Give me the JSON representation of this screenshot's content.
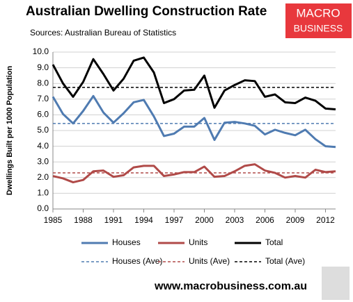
{
  "chart_data": {
    "type": "line",
    "title": "Australian Dwelling Construction Rate",
    "subtitle": "Sources: Australian Bureau of Statistics",
    "y_label": "Dwellings Built per 1000 Population",
    "x": [
      1985,
      1986,
      1987,
      1988,
      1989,
      1990,
      1991,
      1992,
      1993,
      1994,
      1995,
      1996,
      1997,
      1998,
      1999,
      2000,
      2001,
      2002,
      2003,
      2004,
      2005,
      2006,
      2007,
      2008,
      2009,
      2010,
      2011,
      2012,
      2013
    ],
    "xlim": [
      1985,
      2013
    ],
    "xticks": [
      1985,
      1988,
      1991,
      1994,
      1997,
      2000,
      2003,
      2006,
      2009,
      2012
    ],
    "ylim": [
      0,
      10
    ],
    "yticks": [
      {
        "value": 0,
        "label": "0.0"
      },
      {
        "value": 1,
        "label": "1.0"
      },
      {
        "value": 2,
        "label": "2.0"
      },
      {
        "value": 3,
        "label": "3.0"
      },
      {
        "value": 4,
        "label": "4.0"
      },
      {
        "value": 5,
        "label": "5.0"
      },
      {
        "value": 6,
        "label": "6.0"
      },
      {
        "value": 7,
        "label": "7.0"
      },
      {
        "value": 8,
        "label": "8.0"
      },
      {
        "value": 9,
        "label": "9.0"
      },
      {
        "value": 10,
        "label": "10.0"
      }
    ],
    "grid": true,
    "series": [
      {
        "name": "Houses",
        "color": "#4f7bb1",
        "values": [
          7.15,
          6.05,
          5.45,
          6.25,
          7.2,
          6.15,
          5.5,
          6.1,
          6.8,
          6.95,
          5.9,
          4.65,
          4.8,
          5.25,
          5.25,
          5.8,
          4.4,
          5.5,
          5.55,
          5.45,
          5.3,
          4.75,
          5.05,
          4.85,
          4.7,
          5.05,
          4.45,
          4.0,
          3.95
        ]
      },
      {
        "name": "Units",
        "color": "#b04a48",
        "values": [
          2.1,
          1.95,
          1.7,
          1.85,
          2.4,
          2.45,
          2.05,
          2.15,
          2.65,
          2.75,
          2.75,
          2.1,
          2.2,
          2.35,
          2.35,
          2.7,
          2.05,
          2.1,
          2.4,
          2.75,
          2.85,
          2.45,
          2.3,
          2.0,
          2.1,
          2.0,
          2.5,
          2.35,
          2.4
        ]
      },
      {
        "name": "Total",
        "color": "#000000",
        "values": [
          9.2,
          8.0,
          7.15,
          8.1,
          9.55,
          8.6,
          7.55,
          8.3,
          9.45,
          9.65,
          8.7,
          6.75,
          7.0,
          7.55,
          7.6,
          8.5,
          6.45,
          7.55,
          7.9,
          8.2,
          8.15,
          7.15,
          7.3,
          6.8,
          6.75,
          7.1,
          6.9,
          6.4,
          6.35
        ]
      }
    ],
    "reference_lines": [
      {
        "name": "Houses (Ave)",
        "color": "#4f7bb1",
        "value": 5.45
      },
      {
        "name": "Units (Ave)",
        "color": "#b04a48",
        "value": 2.3
      },
      {
        "name": "Total (Ave)",
        "color": "#000000",
        "value": 7.75
      }
    ]
  },
  "logo": {
    "line1": "MACRO",
    "line2": "BUSINESS"
  },
  "footer": "www.macrobusiness.com.au"
}
